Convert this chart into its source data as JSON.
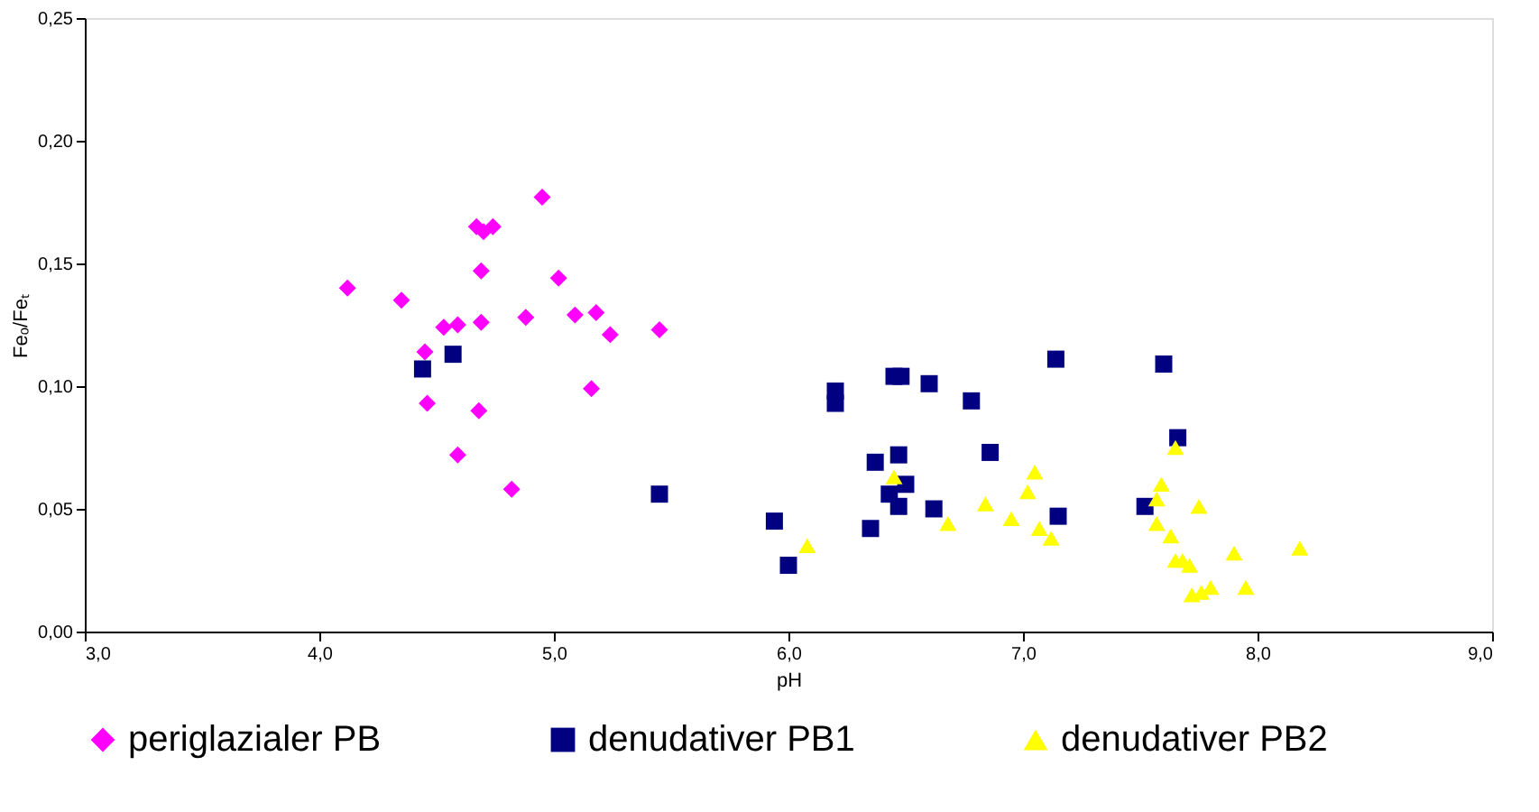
{
  "chart_data": {
    "type": "scatter",
    "xlabel": "pH",
    "ylabel": "Feₒ/Feₜ",
    "xlim": [
      3,
      9
    ],
    "ylim": [
      0,
      0.25
    ],
    "xticks": [
      {
        "value": 3,
        "label": "3,0"
      },
      {
        "value": 4,
        "label": "4,0"
      },
      {
        "value": 5,
        "label": "5,0"
      },
      {
        "value": 6,
        "label": "6,0"
      },
      {
        "value": 7,
        "label": "7,0"
      },
      {
        "value": 8,
        "label": "8,0"
      },
      {
        "value": 9,
        "label": "9,0"
      }
    ],
    "yticks": [
      {
        "value": 0,
        "label": "0,00"
      },
      {
        "value": 0.05,
        "label": "0,05"
      },
      {
        "value": 0.1,
        "label": "0,10"
      },
      {
        "value": 0.15,
        "label": "0,15"
      },
      {
        "value": 0.2,
        "label": "0,20"
      },
      {
        "value": 0.25,
        "label": "0,25"
      }
    ],
    "grid": false,
    "legend": "bottom",
    "series": [
      {
        "name": "periglazialer PB",
        "color": "#ff00ff",
        "marker": "diamond",
        "x": [
          4.12,
          4.35,
          4.45,
          4.46,
          4.53,
          4.59,
          4.67,
          4.7,
          4.74,
          4.69,
          4.69,
          4.68,
          4.59,
          4.82,
          4.95,
          5.02,
          4.88,
          5.09,
          5.18,
          5.24,
          5.16,
          5.45
        ],
        "values": [
          0.14,
          0.135,
          0.114,
          0.093,
          0.124,
          0.125,
          0.165,
          0.163,
          0.165,
          0.147,
          0.126,
          0.09,
          0.072,
          0.058,
          0.177,
          0.144,
          0.128,
          0.129,
          0.13,
          0.121,
          0.099,
          0.123
        ]
      },
      {
        "name": "denudativer PB1",
        "color": "#000080",
        "marker": "square",
        "x": [
          4.44,
          4.57,
          5.45,
          5.94,
          6.0,
          6.2,
          6.2,
          6.45,
          6.48,
          6.6,
          6.78,
          7.14,
          7.6,
          7.66,
          6.37,
          6.47,
          6.5,
          6.43,
          6.47,
          6.62,
          6.86,
          6.35,
          7.15,
          7.52
        ],
        "values": [
          0.107,
          0.113,
          0.056,
          0.045,
          0.027,
          0.098,
          0.093,
          0.104,
          0.104,
          0.101,
          0.094,
          0.111,
          0.109,
          0.079,
          0.069,
          0.072,
          0.06,
          0.056,
          0.051,
          0.05,
          0.073,
          0.042,
          0.047,
          0.051
        ]
      },
      {
        "name": "denudativer PB2",
        "color": "#ffff00",
        "marker": "triangle",
        "x": [
          6.08,
          6.45,
          6.68,
          6.84,
          6.95,
          7.05,
          7.02,
          7.07,
          7.12,
          7.65,
          7.59,
          7.57,
          7.57,
          7.63,
          7.75,
          7.65,
          7.68,
          7.71,
          7.9,
          8.18,
          7.72,
          7.76,
          7.8,
          7.95
        ],
        "values": [
          0.035,
          0.063,
          0.044,
          0.052,
          0.046,
          0.065,
          0.057,
          0.042,
          0.038,
          0.075,
          0.06,
          0.054,
          0.044,
          0.039,
          0.051,
          0.029,
          0.029,
          0.027,
          0.032,
          0.034,
          0.015,
          0.016,
          0.018,
          0.018
        ]
      }
    ]
  }
}
